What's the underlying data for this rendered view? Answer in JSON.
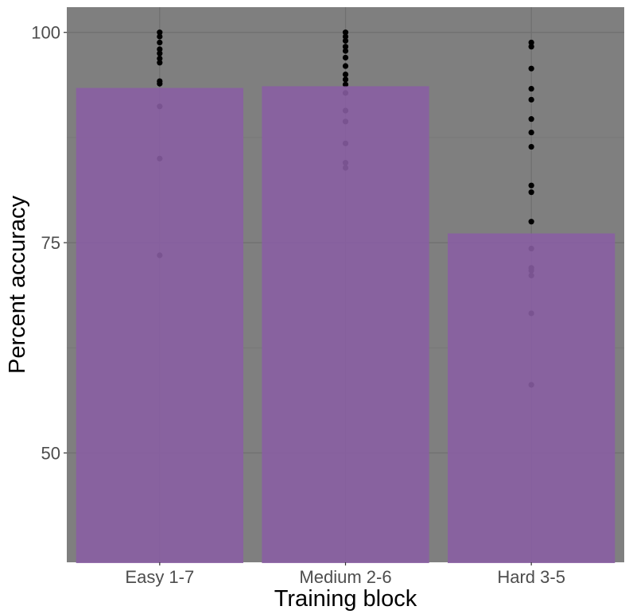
{
  "chart_data": {
    "type": "bar",
    "title": "",
    "xlabel": "Training block",
    "ylabel": "Percent accuracy",
    "categories": [
      "Easy 1-7",
      "Medium 2-6",
      "Hard 3-5"
    ],
    "values": [
      93.4,
      93.6,
      76.1
    ],
    "points": [
      [
        100,
        99.5,
        98.8,
        98.0,
        97.5,
        96.9,
        96.4,
        94.2,
        93.9,
        91.2,
        85.0,
        73.5
      ],
      [
        100,
        99.5,
        99.0,
        98.3,
        97.8,
        97.0,
        96.0,
        95.0,
        94.4,
        93.8,
        92.8,
        90.7,
        89.4,
        86.8,
        84.5,
        83.9
      ],
      [
        98.8,
        98.3,
        95.7,
        93.3,
        92.0,
        89.7,
        88.1,
        86.4,
        81.8,
        81.0,
        77.5,
        74.3,
        72.0,
        71.7,
        71.1,
        66.6,
        58.1
      ]
    ],
    "yticks": [
      50,
      75,
      100
    ],
    "ylim": [
      37,
      103
    ],
    "colors": {
      "panel": "#7f7f7f",
      "grid_major": "#6f6f6f",
      "grid_minor": "#777777",
      "bar": "#8a5ea4",
      "point": "#000000"
    }
  }
}
